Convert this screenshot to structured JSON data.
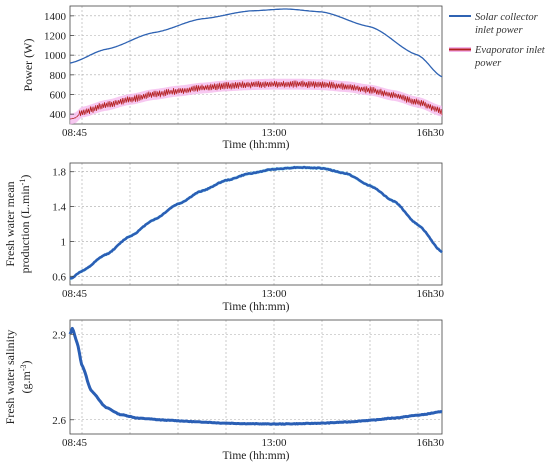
{
  "colors": {
    "solar": "#2f63b3",
    "evap": "#b41f1f",
    "evap_glow": "#f4b6ec",
    "water": "#2a5fb5",
    "water_glow": "#7fe8f5",
    "grid": "#a9a9a9",
    "axis": "#444444"
  },
  "chart_data": [
    {
      "type": "line",
      "ylabel": "Power (W)",
      "xlabel": "Time (hh:mm)",
      "x_ticks": [
        "08:45",
        "13:00",
        "16h30"
      ],
      "x_ticks_hours": [
        8.75,
        13.0,
        16.5
      ],
      "xlim": [
        8.75,
        16.5
      ],
      "ylim": [
        300,
        1500
      ],
      "y_ticks": [
        400,
        600,
        800,
        1000,
        1200,
        1400
      ],
      "y_tick_labels": [
        "400",
        "600",
        "800",
        "1000",
        "1200",
        "1400"
      ],
      "legend": "right",
      "grid": true,
      "series": [
        {
          "name": "Solar collector inlet power",
          "x": [
            8.75,
            9.5,
            10.5,
            11.5,
            12.5,
            13.25,
            14.0,
            15.0,
            16.0,
            16.5
          ],
          "y": [
            920,
            1060,
            1230,
            1370,
            1450,
            1470,
            1440,
            1290,
            1000,
            780
          ]
        },
        {
          "name": "Evaporator inlet power",
          "x": [
            8.75,
            8.85,
            9.0,
            9.5,
            10.0,
            10.5,
            11.0,
            11.5,
            12.0,
            12.5,
            13.0,
            13.5,
            14.0,
            14.5,
            15.0,
            15.5,
            16.0,
            16.5
          ],
          "y": [
            350,
            360,
            420,
            490,
            550,
            600,
            635,
            665,
            688,
            700,
            705,
            705,
            700,
            680,
            645,
            590,
            520,
            430
          ]
        }
      ]
    },
    {
      "type": "line",
      "ylabel": "Fresh water mean production (L.min⁻¹)",
      "xlabel": "Time (hh:mm)",
      "x_ticks": [
        "08:45",
        "13:00",
        "16h30"
      ],
      "x_ticks_hours": [
        8.75,
        13.0,
        16.5
      ],
      "xlim": [
        8.75,
        16.5
      ],
      "ylim": [
        0.5,
        1.9
      ],
      "y_ticks": [
        0.6,
        1.0,
        1.4,
        1.8
      ],
      "y_tick_labels": [
        "0.6",
        "1",
        "1.4",
        "1.8"
      ],
      "grid": true,
      "series": [
        {
          "x": [
            8.75,
            9.0,
            9.5,
            10.0,
            10.5,
            11.0,
            11.5,
            12.0,
            12.5,
            13.0,
            13.5,
            14.0,
            14.5,
            15.0,
            15.5,
            16.0,
            16.5
          ],
          "y": [
            0.57,
            0.66,
            0.85,
            1.06,
            1.25,
            1.43,
            1.58,
            1.7,
            1.78,
            1.83,
            1.85,
            1.84,
            1.78,
            1.64,
            1.46,
            1.19,
            0.88
          ]
        }
      ]
    },
    {
      "type": "line",
      "ylabel": "Fresh water salinity (g.m⁻³)",
      "xlabel": "Time (hh:mm)",
      "x_ticks": [
        "08:45",
        "13:00",
        "16h30"
      ],
      "x_ticks_hours": [
        8.75,
        13.0,
        16.5
      ],
      "xlim": [
        8.75,
        16.5
      ],
      "ylim": [
        2.55,
        2.95
      ],
      "y_ticks": [
        2.6,
        2.9
      ],
      "y_tick_labels": [
        "2.6",
        "2.9"
      ],
      "grid": true,
      "series": [
        {
          "x": [
            8.75,
            8.8,
            8.9,
            9.0,
            9.2,
            9.5,
            9.8,
            10.2,
            10.8,
            11.5,
            12.0,
            12.5,
            13.0,
            13.5,
            14.0,
            14.5,
            15.0,
            15.5,
            16.0,
            16.5
          ],
          "y": [
            2.9,
            2.92,
            2.87,
            2.79,
            2.7,
            2.643,
            2.618,
            2.605,
            2.598,
            2.592,
            2.588,
            2.586,
            2.585,
            2.586,
            2.588,
            2.592,
            2.598,
            2.606,
            2.616,
            2.628
          ]
        }
      ]
    }
  ]
}
